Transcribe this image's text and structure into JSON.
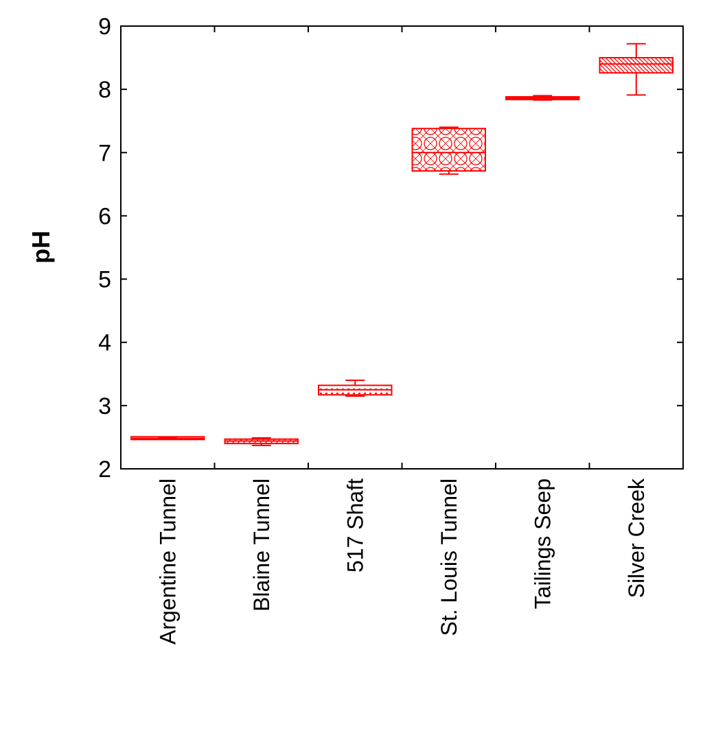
{
  "chart_data": {
    "type": "box",
    "ylabel": "pH",
    "ylim": [
      2,
      9
    ],
    "yticks": [
      "2",
      "3",
      "4",
      "5",
      "6",
      "7",
      "8",
      "9"
    ],
    "grid": false,
    "legend": "none",
    "colors": {
      "box": "#ff0000",
      "axis": "#000000"
    },
    "categories": [
      "Argentine Tunnel",
      "Blaine Tunnel",
      "517 Shaft",
      "St. Louis Tunnel",
      "Tailings Seep",
      "Silver Creek"
    ],
    "boxes": [
      {
        "name": "Argentine Tunnel",
        "min": 2.48,
        "q1": 2.48,
        "median": 2.48,
        "q3": 2.49,
        "max": 2.49,
        "pattern": "none"
      },
      {
        "name": "Blaine Tunnel",
        "min": 2.37,
        "q1": 2.4,
        "median": 2.44,
        "q3": 2.47,
        "max": 2.49,
        "pattern": "hatch"
      },
      {
        "name": "517 Shaft",
        "min": 3.15,
        "q1": 3.17,
        "median": 3.25,
        "q3": 3.32,
        "max": 3.4,
        "pattern": "dots"
      },
      {
        "name": "St. Louis Tunnel",
        "min": 6.66,
        "q1": 6.71,
        "median": 7.0,
        "q3": 7.38,
        "max": 7.4,
        "pattern": "circles"
      },
      {
        "name": "Tailings Seep",
        "min": 7.83,
        "q1": 7.84,
        "median": 7.86,
        "q3": 7.88,
        "max": 7.9,
        "pattern": "none"
      },
      {
        "name": "Silver Creek",
        "min": 7.91,
        "q1": 8.26,
        "median": 8.4,
        "q3": 8.5,
        "max": 8.72,
        "pattern": "diagonal"
      }
    ]
  }
}
